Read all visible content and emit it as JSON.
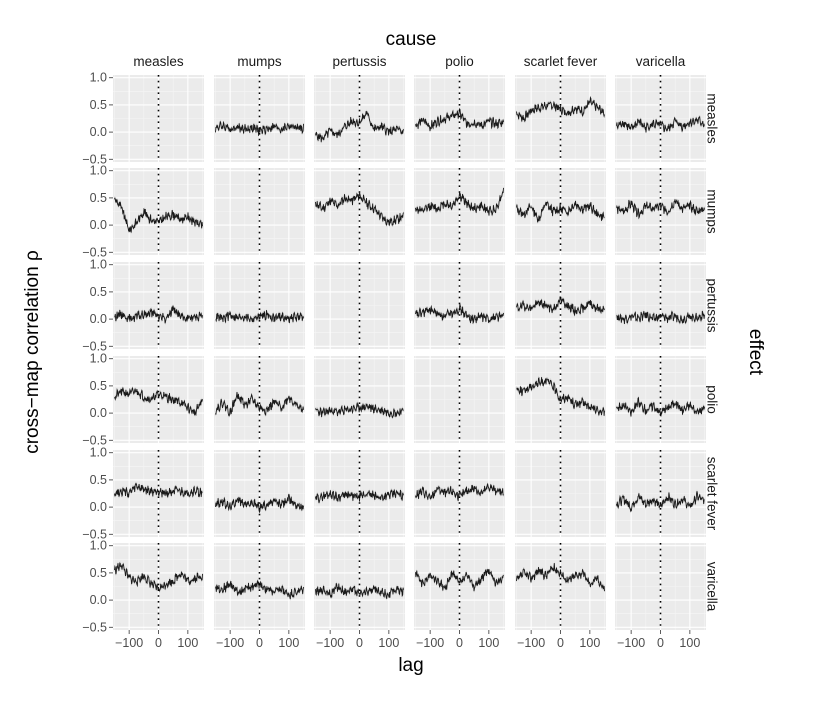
{
  "chart_data": {
    "type": "line",
    "facet_top_title": "cause",
    "facet_right_title": "effect",
    "xlabel": "lag",
    "ylabel": "cross−map correlation ρ",
    "xlim": [
      -155,
      155
    ],
    "ylim": [
      -0.55,
      1.05
    ],
    "x_ticks": [
      -100,
      0,
      100
    ],
    "x_tick_labels": [
      "−100",
      "0",
      "100"
    ],
    "y_ticks": [
      -0.5,
      0.0,
      0.5,
      1.0
    ],
    "y_tick_labels": [
      "−0.5",
      "0.0",
      "0.5",
      "1.0"
    ],
    "reference_line": {
      "x": 0,
      "style": "dotted"
    },
    "causes": [
      "measles",
      "mumps",
      "pertussis",
      "polio",
      "scarlet fever",
      "varicella"
    ],
    "effects": [
      "measles",
      "mumps",
      "pertussis",
      "polio",
      "scarlet fever",
      "varicella"
    ],
    "lag_grid": [
      -150,
      -125,
      -100,
      -75,
      -50,
      -25,
      0,
      25,
      50,
      75,
      100,
      125,
      150
    ],
    "panels": [
      {
        "cause": "measles",
        "effect": "measles",
        "rho": null
      },
      {
        "cause": "mumps",
        "effect": "measles",
        "rho": [
          0.08,
          0.12,
          0.06,
          0.1,
          0.05,
          0.08,
          0.02,
          0.06,
          0.1,
          0.05,
          0.12,
          0.08,
          0.06
        ]
      },
      {
        "cause": "pertussis",
        "effect": "measles",
        "rho": [
          -0.05,
          -0.12,
          0.02,
          -0.05,
          0.1,
          0.2,
          0.18,
          0.35,
          0.05,
          0.1,
          0.0,
          0.05,
          0.0
        ]
      },
      {
        "cause": "polio",
        "effect": "measles",
        "rho": [
          0.12,
          0.22,
          0.1,
          0.2,
          0.25,
          0.3,
          0.35,
          0.15,
          0.18,
          0.12,
          0.2,
          0.15,
          0.18
        ]
      },
      {
        "cause": "scarlet fever",
        "effect": "measles",
        "rho": [
          0.35,
          0.25,
          0.4,
          0.45,
          0.48,
          0.5,
          0.42,
          0.35,
          0.45,
          0.38,
          0.55,
          0.45,
          0.35
        ]
      },
      {
        "cause": "varicella",
        "effect": "measles",
        "rho": [
          0.1,
          0.18,
          0.05,
          0.2,
          0.08,
          0.15,
          0.12,
          0.05,
          0.2,
          0.1,
          0.18,
          0.22,
          0.15
        ]
      },
      {
        "cause": "measles",
        "effect": "mumps",
        "rho": [
          0.5,
          0.3,
          -0.1,
          0.05,
          0.25,
          0.1,
          0.05,
          0.15,
          0.2,
          0.1,
          0.15,
          0.05,
          0.0
        ]
      },
      {
        "cause": "mumps",
        "effect": "mumps",
        "rho": null
      },
      {
        "cause": "pertussis",
        "effect": "mumps",
        "rho": [
          0.4,
          0.3,
          0.45,
          0.35,
          0.5,
          0.45,
          0.55,
          0.4,
          0.3,
          0.15,
          0.05,
          0.1,
          0.15
        ]
      },
      {
        "cause": "polio",
        "effect": "mumps",
        "rho": [
          0.3,
          0.25,
          0.35,
          0.3,
          0.4,
          0.35,
          0.55,
          0.4,
          0.3,
          0.35,
          0.25,
          0.3,
          0.65
        ]
      },
      {
        "cause": "scarlet fever",
        "effect": "mumps",
        "rho": [
          0.3,
          0.2,
          0.35,
          0.1,
          0.4,
          0.25,
          0.3,
          0.25,
          0.4,
          0.3,
          0.35,
          0.2,
          0.15
        ]
      },
      {
        "cause": "varicella",
        "effect": "mumps",
        "rho": [
          0.3,
          0.25,
          0.4,
          0.2,
          0.35,
          0.3,
          0.35,
          0.25,
          0.45,
          0.3,
          0.35,
          0.25,
          0.3
        ]
      },
      {
        "cause": "measles",
        "effect": "pertussis",
        "rho": [
          0.05,
          0.1,
          0.0,
          0.05,
          0.08,
          0.12,
          0.05,
          0.0,
          0.2,
          0.05,
          0.0,
          0.05,
          0.08
        ]
      },
      {
        "cause": "mumps",
        "effect": "pertussis",
        "rho": [
          0.05,
          0.0,
          0.08,
          0.02,
          0.05,
          0.0,
          0.05,
          0.08,
          0.02,
          0.05,
          0.0,
          0.05,
          0.02
        ]
      },
      {
        "cause": "pertussis",
        "effect": "pertussis",
        "rho": null
      },
      {
        "cause": "polio",
        "effect": "pertussis",
        "rho": [
          0.08,
          0.12,
          0.18,
          0.1,
          0.05,
          0.12,
          0.2,
          0.05,
          0.0,
          0.05,
          0.0,
          0.05,
          0.05
        ]
      },
      {
        "cause": "scarlet fever",
        "effect": "pertussis",
        "rho": [
          0.2,
          0.25,
          0.2,
          0.3,
          0.25,
          0.18,
          0.35,
          0.25,
          0.15,
          0.2,
          0.3,
          0.2,
          0.15
        ]
      },
      {
        "cause": "varicella",
        "effect": "pertussis",
        "rho": [
          0.05,
          0.0,
          0.05,
          0.02,
          0.08,
          0.0,
          0.05,
          0.02,
          0.05,
          0.0,
          0.05,
          0.02,
          0.08
        ]
      },
      {
        "cause": "measles",
        "effect": "polio",
        "rho": [
          0.3,
          0.4,
          0.35,
          0.42,
          0.3,
          0.25,
          0.35,
          0.3,
          0.25,
          0.2,
          0.1,
          0.0,
          0.25
        ]
      },
      {
        "cause": "mumps",
        "effect": "polio",
        "rho": [
          0.05,
          0.2,
          0.0,
          0.35,
          0.15,
          0.25,
          0.1,
          0.05,
          0.2,
          0.1,
          0.3,
          0.15,
          0.05
        ]
      },
      {
        "cause": "pertussis",
        "effect": "polio",
        "rho": [
          0.05,
          0.0,
          0.05,
          0.02,
          0.05,
          0.08,
          0.1,
          0.12,
          0.08,
          0.05,
          0.02,
          0.0,
          0.05
        ]
      },
      {
        "cause": "polio",
        "effect": "polio",
        "rho": null
      },
      {
        "cause": "scarlet fever",
        "effect": "polio",
        "rho": [
          0.45,
          0.4,
          0.5,
          0.55,
          0.6,
          0.5,
          0.25,
          0.3,
          0.15,
          0.2,
          0.1,
          0.05,
          0.0
        ]
      },
      {
        "cause": "varicella",
        "effect": "polio",
        "rho": [
          0.1,
          0.15,
          0.0,
          0.2,
          0.05,
          0.15,
          0.0,
          0.1,
          0.2,
          0.05,
          0.15,
          0.0,
          0.1
        ]
      },
      {
        "cause": "measles",
        "effect": "scarlet fever",
        "rho": [
          0.25,
          0.3,
          0.25,
          0.38,
          0.32,
          0.28,
          0.3,
          0.25,
          0.3,
          0.28,
          0.25,
          0.3,
          0.25
        ]
      },
      {
        "cause": "mumps",
        "effect": "scarlet fever",
        "rho": [
          0.05,
          0.1,
          0.0,
          0.15,
          0.05,
          0.08,
          0.0,
          0.05,
          0.1,
          0.05,
          0.15,
          0.05,
          0.0
        ]
      },
      {
        "cause": "pertussis",
        "effect": "scarlet fever",
        "rho": [
          0.15,
          0.2,
          0.25,
          0.18,
          0.22,
          0.2,
          0.18,
          0.25,
          0.2,
          0.18,
          0.22,
          0.25,
          0.2
        ]
      },
      {
        "cause": "polio",
        "effect": "scarlet fever",
        "rho": [
          0.2,
          0.3,
          0.15,
          0.35,
          0.25,
          0.3,
          0.18,
          0.3,
          0.35,
          0.25,
          0.38,
          0.3,
          0.25
        ]
      },
      {
        "cause": "scarlet fever",
        "effect": "scarlet fever",
        "rho": null
      },
      {
        "cause": "varicella",
        "effect": "scarlet fever",
        "rho": [
          0.05,
          0.15,
          0.0,
          0.2,
          0.05,
          0.15,
          0.0,
          0.2,
          0.05,
          0.15,
          0.0,
          0.2,
          0.1
        ]
      },
      {
        "cause": "measles",
        "effect": "varicella",
        "rho": [
          0.55,
          0.65,
          0.4,
          0.35,
          0.45,
          0.3,
          0.2,
          0.3,
          0.35,
          0.5,
          0.35,
          0.4,
          0.45
        ]
      },
      {
        "cause": "mumps",
        "effect": "varicella",
        "rho": [
          0.25,
          0.2,
          0.3,
          0.15,
          0.2,
          0.25,
          0.3,
          0.2,
          0.15,
          0.2,
          0.1,
          0.15,
          0.2
        ]
      },
      {
        "cause": "pertussis",
        "effect": "varicella",
        "rho": [
          0.15,
          0.2,
          0.1,
          0.25,
          0.15,
          0.2,
          0.1,
          0.15,
          0.2,
          0.15,
          0.1,
          0.2,
          0.15
        ]
      },
      {
        "cause": "polio",
        "effect": "varicella",
        "rho": [
          0.5,
          0.3,
          0.45,
          0.35,
          0.2,
          0.5,
          0.3,
          0.45,
          0.25,
          0.4,
          0.55,
          0.3,
          0.45
        ]
      },
      {
        "cause": "scarlet fever",
        "effect": "varicella",
        "rho": [
          0.35,
          0.5,
          0.4,
          0.55,
          0.45,
          0.6,
          0.5,
          0.35,
          0.45,
          0.5,
          0.3,
          0.4,
          0.2
        ]
      },
      {
        "cause": "varicella",
        "effect": "varicella",
        "rho": null
      }
    ]
  }
}
